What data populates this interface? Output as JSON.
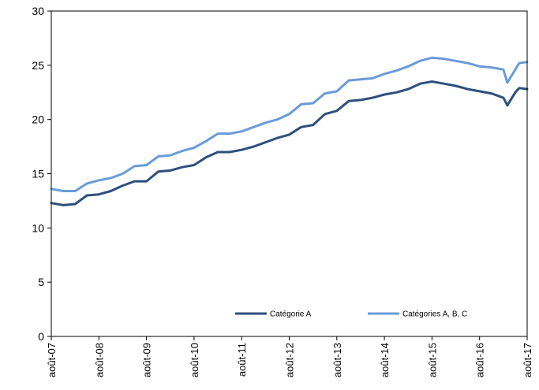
{
  "chart_data": {
    "type": "line",
    "title": "",
    "xlabel": "",
    "ylabel": "",
    "ylim": [
      0,
      30
    ],
    "yticks": [
      0,
      5,
      10,
      15,
      20,
      25,
      30
    ],
    "xlim": [
      0,
      120
    ],
    "x_tick_labels": [
      "août-07",
      "août-08",
      "août-09",
      "août-10",
      "août-11",
      "août-12",
      "août-13",
      "août-14",
      "août-15",
      "août-16",
      "août-17"
    ],
    "x_tick_positions": [
      0,
      12,
      24,
      36,
      48,
      60,
      72,
      84,
      96,
      108,
      120
    ],
    "grid": false,
    "legend_position": "bottom",
    "x_description": "monthly, août-07 to août-17",
    "series": [
      {
        "name": "Catégorie A",
        "color": "#2e4f7c",
        "x": [
          0,
          3,
          6,
          9,
          12,
          15,
          18,
          21,
          24,
          27,
          30,
          33,
          36,
          39,
          42,
          45,
          48,
          51,
          54,
          57,
          60,
          63,
          66,
          69,
          72,
          75,
          78,
          81,
          84,
          87,
          90,
          93,
          96,
          99,
          102,
          105,
          108,
          111,
          114,
          115,
          117,
          118,
          120
        ],
        "values": [
          12.3,
          12.1,
          12.2,
          13.0,
          13.1,
          13.4,
          13.9,
          14.3,
          14.3,
          15.2,
          15.3,
          15.6,
          15.8,
          16.5,
          17.0,
          17.0,
          17.2,
          17.5,
          17.9,
          18.3,
          18.6,
          19.3,
          19.5,
          20.5,
          20.8,
          21.7,
          21.8,
          22.0,
          22.3,
          22.5,
          22.8,
          23.3,
          23.5,
          23.3,
          23.1,
          22.8,
          22.6,
          22.4,
          22.0,
          21.3,
          22.5,
          22.9,
          22.8
        ]
      },
      {
        "name": "Catégories A, B, C",
        "color": "#6a9bd8",
        "x": [
          0,
          3,
          6,
          9,
          12,
          15,
          18,
          21,
          24,
          27,
          30,
          33,
          36,
          39,
          42,
          45,
          48,
          51,
          54,
          57,
          60,
          63,
          66,
          69,
          72,
          75,
          78,
          81,
          84,
          87,
          90,
          93,
          96,
          99,
          102,
          105,
          108,
          111,
          114,
          115,
          117,
          118,
          120
        ],
        "values": [
          13.6,
          13.4,
          13.4,
          14.1,
          14.4,
          14.6,
          15.0,
          15.7,
          15.8,
          16.6,
          16.7,
          17.1,
          17.4,
          18.0,
          18.7,
          18.7,
          18.9,
          19.3,
          19.7,
          20.0,
          20.5,
          21.4,
          21.5,
          22.4,
          22.6,
          23.6,
          23.7,
          23.8,
          24.2,
          24.5,
          24.9,
          25.4,
          25.7,
          25.6,
          25.4,
          25.2,
          24.9,
          24.8,
          24.6,
          23.4,
          24.6,
          25.2,
          25.3
        ]
      }
    ]
  }
}
